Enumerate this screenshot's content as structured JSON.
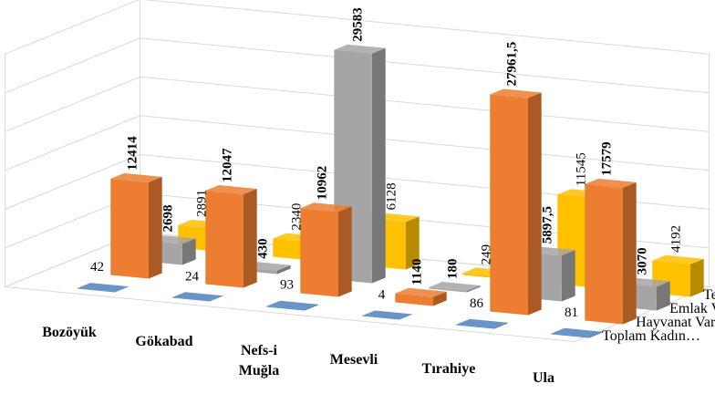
{
  "chart_data": {
    "type": "bar",
    "title": "",
    "xlabel": "",
    "ylabel": "",
    "categories": [
      "Bozöyük",
      "Gökabad",
      "Nefs-i Muğla",
      "Mesevli",
      "Tırahiye",
      "Ula"
    ],
    "series": [
      {
        "name": "Toplam Kadın…",
        "values": [
          42,
          24,
          93,
          4,
          86,
          81
        ],
        "color": "#4f81bd",
        "labels": [
          "42",
          "24",
          "93",
          "4",
          "86",
          "81"
        ]
      },
      {
        "name": "Hayvanat Varlığı",
        "values": [
          12414,
          12047,
          10962,
          1140,
          27961.5,
          17579
        ],
        "color": "#ed7d31",
        "labels": [
          "12414",
          "12047",
          "10962",
          "1140",
          "27961,5",
          "17579"
        ]
      },
      {
        "name": "Emlak Varlığı",
        "values": [
          2698,
          430,
          29583,
          180,
          5897.5,
          3070
        ],
        "color": "#a5a5a5",
        "labels": [
          "2698",
          "430",
          "29583",
          "180",
          "5897,5",
          "3070"
        ]
      },
      {
        "name": "Temettuatı",
        "values": [
          2891,
          2340,
          6128,
          249,
          11545,
          4192
        ],
        "color": "#ffc000",
        "labels": [
          "2891",
          "2340",
          "6128",
          "249",
          "11545",
          "4192"
        ]
      }
    ],
    "grid": true,
    "legend": "right"
  }
}
